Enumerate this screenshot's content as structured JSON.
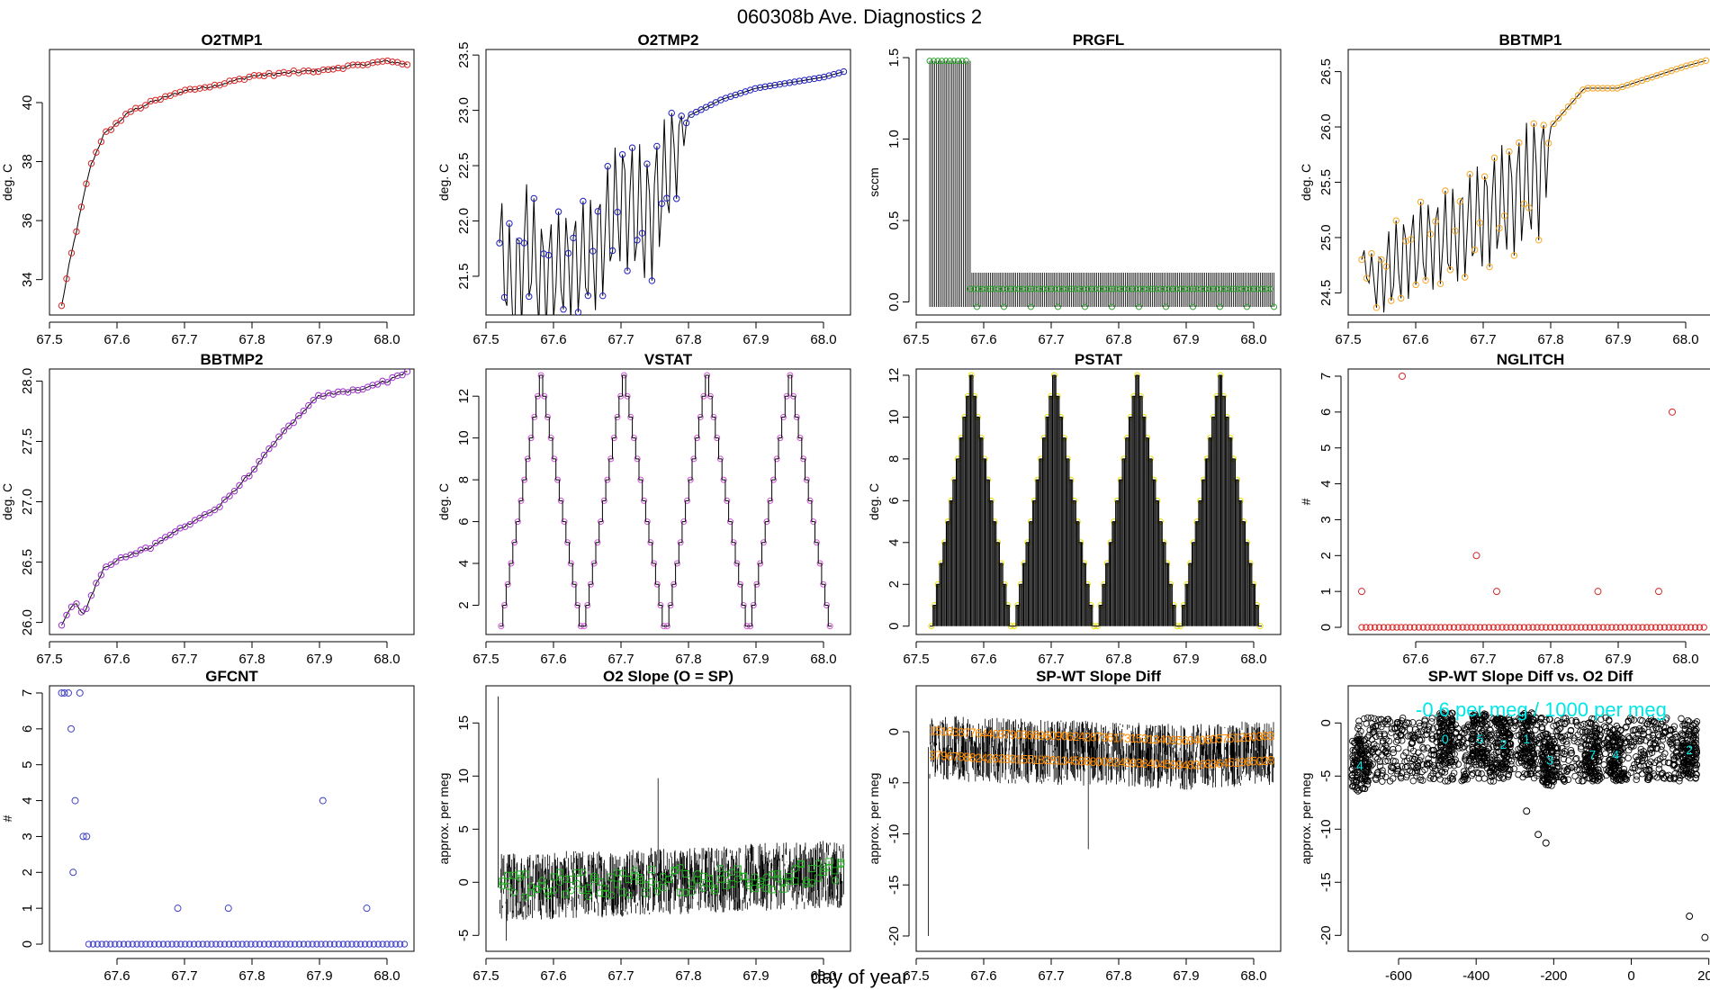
{
  "figure": {
    "title": "060308b   Ave. Diagnostics 2",
    "xaxis_title": "day of year"
  },
  "chart_data": [
    {
      "id": "o2tmp1",
      "type": "line",
      "title": "O2TMP1",
      "ylabel": "deg. C",
      "point_color": "#d62728",
      "xlim": [
        67.5,
        68.04
      ],
      "ylim": [
        32.8,
        41.8
      ],
      "xticks": [
        "67.5",
        "67.6",
        "67.7",
        "67.8",
        "67.9",
        "68.0"
      ],
      "yticks": [
        "34",
        "36",
        "38",
        "40"
      ],
      "x": [
        67.518,
        67.53,
        67.545,
        67.56,
        67.58,
        67.6,
        67.62,
        67.65,
        67.7,
        67.75,
        67.8,
        67.9,
        68.0,
        68.03
      ],
      "y": [
        33.1,
        34.6,
        36.2,
        37.8,
        38.9,
        39.3,
        39.7,
        40.0,
        40.4,
        40.6,
        40.9,
        41.1,
        41.4,
        41.3
      ]
    },
    {
      "id": "o2tmp2",
      "type": "line",
      "title": "O2TMP2",
      "ylabel": "deg. C",
      "point_color": "#1f1fbf",
      "xlim": [
        67.5,
        68.04
      ],
      "ylim": [
        21.15,
        23.55
      ],
      "xticks": [
        "67.5",
        "67.6",
        "67.7",
        "67.8",
        "67.9",
        "68.0"
      ],
      "yticks": [
        "21.5",
        "22.0",
        "22.5",
        "23.0",
        "23.5"
      ],
      "x": [
        67.52,
        67.54,
        67.56,
        67.58,
        67.62,
        67.66,
        67.7,
        67.74,
        67.78,
        67.8,
        67.85,
        67.9,
        67.95,
        68.0,
        68.03
      ],
      "y": [
        21.8,
        21.3,
        21.8,
        21.5,
        21.6,
        21.7,
        22.2,
        22.0,
        22.6,
        22.95,
        23.1,
        23.2,
        23.25,
        23.3,
        23.35
      ],
      "osc_amp": [
        0.45,
        0.6,
        0.6,
        0.55,
        0.5,
        0.55,
        0.6,
        0.65,
        0.5,
        0.0,
        0,
        0,
        0,
        0,
        0
      ]
    },
    {
      "id": "prgfl",
      "type": "line",
      "title": "PRGFL",
      "ylabel": "sccm",
      "point_color": "#2ca02c",
      "xlim": [
        67.5,
        68.04
      ],
      "ylim": [
        -0.08,
        1.55
      ],
      "xticks": [
        "67.5",
        "67.6",
        "67.7",
        "67.8",
        "67.9",
        "68.0"
      ],
      "yticks": [
        "0.0",
        "0.5",
        "1.0",
        "1.5"
      ],
      "x": [
        67.52,
        67.575,
        67.58,
        68.03
      ],
      "y": [
        1.48,
        1.48,
        0.08,
        0.08
      ],
      "spike_low": -0.03
    },
    {
      "id": "bbtmp1",
      "type": "line",
      "title": "BBTMP1",
      "ylabel": "deg. C",
      "point_color": "#f5a623",
      "xlim": [
        67.5,
        68.04
      ],
      "ylim": [
        24.3,
        26.7
      ],
      "xticks": [
        "67.5",
        "67.6",
        "67.7",
        "67.8",
        "67.9",
        "68.0"
      ],
      "yticks": [
        "24.5",
        "25.0",
        "25.5",
        "26.0",
        "26.5"
      ],
      "x": [
        67.52,
        67.54,
        67.56,
        67.6,
        67.65,
        67.7,
        67.75,
        67.79,
        67.8,
        67.85,
        67.9,
        67.95,
        68.0,
        68.03
      ],
      "y": [
        24.8,
        24.6,
        24.7,
        24.9,
        25.0,
        25.2,
        25.4,
        25.6,
        26.0,
        26.35,
        26.35,
        26.45,
        26.55,
        26.6
      ],
      "osc_amp": [
        0.1,
        0.25,
        0.4,
        0.4,
        0.45,
        0.5,
        0.55,
        0.6,
        0,
        0,
        0,
        0,
        0,
        0
      ]
    },
    {
      "id": "bbtmp2",
      "type": "line",
      "title": "BBTMP2",
      "ylabel": "deg. C",
      "point_color": "#9b30c8",
      "xlim": [
        67.5,
        68.04
      ],
      "ylim": [
        25.9,
        28.1
      ],
      "xticks": [
        "67.5",
        "67.6",
        "67.7",
        "67.8",
        "67.9",
        "68.0"
      ],
      "yticks": [
        "26.0",
        "26.5",
        "27.0",
        "27.5",
        "28.0"
      ],
      "x": [
        67.518,
        67.53,
        67.54,
        67.55,
        67.56,
        67.58,
        67.6,
        67.65,
        67.7,
        67.75,
        67.8,
        67.85,
        67.9,
        67.95,
        68.0,
        68.03
      ],
      "y": [
        25.98,
        26.12,
        26.15,
        26.05,
        26.2,
        26.45,
        26.52,
        26.62,
        26.8,
        26.95,
        27.25,
        27.6,
        27.88,
        27.92,
        28.0,
        28.08
      ]
    },
    {
      "id": "vstat",
      "type": "step",
      "title": "VSTAT",
      "ylabel": "deg. C",
      "point_color": "#d152d9",
      "xlim": [
        67.5,
        68.04
      ],
      "ylim": [
        0.6,
        13.3
      ],
      "xticks": [
        "67.5",
        "67.6",
        "67.7",
        "67.8",
        "67.9",
        "68.0"
      ],
      "yticks": [
        "2",
        "4",
        "6",
        "8",
        "10",
        "12"
      ],
      "cycle_starts": [
        67.52,
        67.643,
        67.766,
        67.889
      ],
      "cycle_length": 0.123,
      "max_level": 13,
      "min_level": 1
    },
    {
      "id": "pstat",
      "type": "step",
      "title": "PSTAT",
      "ylabel": "deg. C",
      "point_color": "#e8e000",
      "xlim": [
        67.5,
        68.04
      ],
      "ylim": [
        -0.4,
        12.3
      ],
      "xticks": [
        "67.5",
        "67.6",
        "67.7",
        "67.8",
        "67.9",
        "68.0"
      ],
      "yticks": [
        "0",
        "2",
        "4",
        "6",
        "8",
        "10",
        "12"
      ],
      "cycle_starts": [
        67.52,
        67.643,
        67.766,
        67.889
      ],
      "cycle_length": 0.123,
      "max_level": 12,
      "min_level": 0
    },
    {
      "id": "nglitch",
      "type": "scatter",
      "title": "NGLITCH",
      "ylabel": "#",
      "point_color": "#d62728",
      "xlim": [
        67.5,
        68.04
      ],
      "ylim": [
        -0.2,
        7.2
      ],
      "xticks": [
        "67.6",
        "67.7",
        "67.8",
        "67.9",
        "68.0"
      ],
      "yticks": [
        "0",
        "1",
        "2",
        "3",
        "4",
        "5",
        "6",
        "7"
      ],
      "x": [
        67.52,
        67.58,
        67.69,
        67.72,
        67.87,
        67.96,
        67.98
      ],
      "y": [
        1,
        7,
        2,
        1,
        1,
        1,
        6
      ],
      "baseline": 0
    },
    {
      "id": "gfcnt",
      "type": "scatter",
      "title": "GFCNT",
      "ylabel": "#",
      "point_color": "#4040c8",
      "xlim": [
        67.5,
        68.04
      ],
      "ylim": [
        -0.2,
        7.2
      ],
      "xticks": [
        "67.6",
        "67.7",
        "67.8",
        "67.9",
        "68.0"
      ],
      "yticks": [
        "0",
        "1",
        "2",
        "3",
        "4",
        "5",
        "6",
        "7"
      ],
      "x": [
        67.518,
        67.522,
        67.528,
        67.532,
        67.535,
        67.538,
        67.545,
        67.55,
        67.555,
        67.69,
        67.765,
        67.905,
        67.97
      ],
      "y": [
        7,
        7,
        7,
        6,
        2,
        4,
        7,
        3,
        3,
        1,
        1,
        4,
        1
      ],
      "baseline": 0,
      "baseline_from": 67.558
    },
    {
      "id": "o2slope",
      "type": "noise",
      "title": "O2 Slope (O = SP)",
      "ylabel": "approx. per meg",
      "point_color": "#1fb21f",
      "xlim": [
        67.5,
        68.04
      ],
      "ylim": [
        -6.5,
        18.5
      ],
      "xticks": [
        "67.5",
        "67.6",
        "67.7",
        "67.8",
        "67.9",
        "68.0"
      ],
      "yticks": [
        "-5",
        "0",
        "5",
        "10",
        "15"
      ],
      "x": [
        67.52,
        68.03
      ],
      "y": [
        -0.5,
        0.8
      ],
      "noise_amp": 3.2,
      "spikes": [
        [
          67.518,
          17.5
        ],
        [
          67.755,
          9.8
        ],
        [
          67.53,
          -5.5
        ]
      ]
    },
    {
      "id": "spwt",
      "type": "noise",
      "title": "SP-WT Slope Diff",
      "ylabel": "approx. per meg",
      "point_color": "#ff8c00",
      "xlim": [
        67.5,
        68.04
      ],
      "ylim": [
        -21.5,
        4.5
      ],
      "xticks": [
        "67.5",
        "67.6",
        "67.7",
        "67.8",
        "67.9",
        "68.0"
      ],
      "yticks": [
        "-20",
        "-15",
        "-10",
        "-5",
        "0"
      ],
      "x": [
        67.52,
        67.6,
        67.7,
        67.8,
        67.9,
        68.03
      ],
      "y": [
        -1.5,
        -1.8,
        -2.0,
        -2.2,
        -2.5,
        -2.0
      ],
      "noise_amp": 3.2,
      "spikes": [
        [
          67.518,
          -20
        ],
        [
          67.755,
          -11.5
        ]
      ]
    },
    {
      "id": "spwt_vs_o2",
      "type": "scatter",
      "title": "SP-WT Slope Diff vs. O2 Diff",
      "ylabel": "approx. per meg",
      "point_color": "#000000",
      "xlim": [
        -730,
        210
      ],
      "ylim": [
        -21.5,
        3.5
      ],
      "xticks": [
        "-600",
        "-400",
        "-200",
        "0",
        "200"
      ],
      "yticks": [
        "-20",
        "-15",
        "-10",
        "-5",
        "0"
      ],
      "annotation": "-0.6 per meg / 1000 per meg",
      "annotation_color": "#00e5e5",
      "clusters": [
        [
          -700,
          -4.0
        ],
        [
          -480,
          -1.5
        ],
        [
          -390,
          -1.5
        ],
        [
          -330,
          -2.0
        ],
        [
          -270,
          -1.5
        ],
        [
          -210,
          -3.5
        ],
        [
          -100,
          -3.0
        ],
        [
          -40,
          -3.0
        ],
        [
          150,
          -2.5
        ]
      ],
      "cluster_labels": [
        "4",
        "0",
        "5",
        "2",
        "1",
        "3",
        "7",
        "4",
        "2"
      ],
      "outliers": [
        [
          -240,
          -10.5
        ],
        [
          -220,
          -11.3
        ],
        [
          -270,
          -8.3
        ],
        [
          150,
          -18.2
        ],
        [
          190,
          -20.2
        ]
      ]
    }
  ]
}
